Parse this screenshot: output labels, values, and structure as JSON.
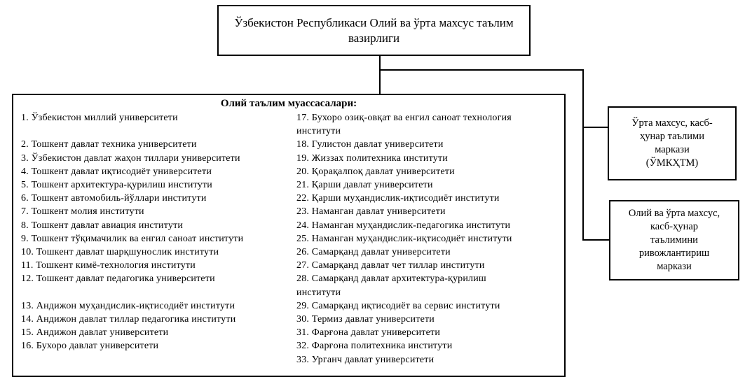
{
  "colors": {
    "background": "#ffffff",
    "text": "#000000",
    "line": "#000000"
  },
  "ministry_box": {
    "lines": [
      "Ўзбекистон Республикаси Олий ва ўрта махсус таълим",
      "вазирлиги"
    ]
  },
  "higher_ed_box": {
    "title": "Олий таълим муассасалари:",
    "left_column_lines": [
      "1. Ўзбекистон миллий университети",
      "",
      "2. Тошкент давлат техника университети",
      "3. Ўзбекистон давлат жаҳон тиллари университети",
      "4. Тошкент давлат иқтисодиёт университети",
      "5. Тошкент архитектура-қурилиш институти",
      "6. Тошкент автомобиль-йўллари институти",
      "7. Тошкент молия институти",
      "8. Тошкент давлат авиация институти",
      "9. Тошкент тўқимачилик ва енгил саноат институти",
      "10. Тошкент давлат шарқшунослик институти",
      "11. Тошкент кимё-технология институти",
      "12. Тошкент давлат педагогика университети",
      "",
      "13. Андижон муҳандислик-иқтисодиёт институти",
      "14. Андижон давлат тиллар педагогика институти",
      "15. Андижон давлат университети",
      "16. Бухоро давлат университети"
    ],
    "right_column_lines": [
      "17. Бухоро озиқ-овқат ва енгил саноат технология",
      "институти",
      "18. Гулистон давлат университети",
      "19. Жиззах политехника институти",
      "20. Қорақалпоқ давлат университети",
      "21. Қарши давлат университети",
      "22. Қарши муҳандислик-иқтисодиёт институти",
      "23. Наманган давлат университети",
      "24. Наманган муҳандислик-педагогика институти",
      "25. Наманган муҳандислик-иқтисодиёт институти",
      "26. Самарқанд давлат университети",
      "27. Самарқанд давлат чет тиллар институти",
      "28. Самарқанд давлат архитектура-қурилиш",
      "институти",
      "29. Самарқанд иқтисодиёт ва сервис институти",
      "30. Термиз давлат университети",
      "31. Фарғона давлат университети",
      "32. Фарғона политехника институти",
      "33. Урганч давлат университети"
    ]
  },
  "vocational_center_box": {
    "lines": [
      "Ўрта махсус, касб-",
      "ҳунар таълими",
      "маркази",
      "(ЎМКҲТМ)"
    ]
  },
  "development_center_box": {
    "lines": [
      "Олий ва ўрта махсус,",
      "касб-ҳунар",
      "таълимини",
      "ривожлантириш",
      "маркази"
    ]
  }
}
